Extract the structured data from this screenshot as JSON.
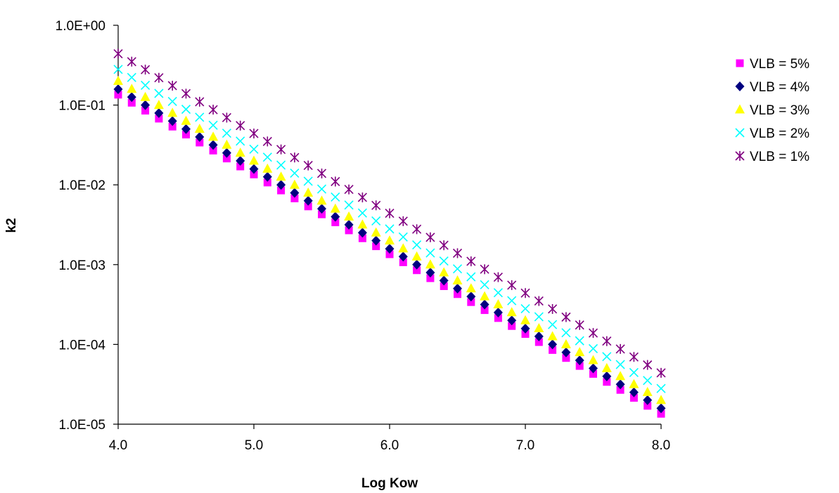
{
  "chart_data": {
    "type": "scatter",
    "title": "",
    "xlabel": "Log Kow",
    "ylabel": "k2",
    "x_scale": "linear",
    "y_scale": "log",
    "xlim": [
      4.0,
      8.0
    ],
    "ylim": [
      1e-05,
      1
    ],
    "x_ticks": [
      4.0,
      5.0,
      6.0,
      7.0,
      8.0
    ],
    "x_tick_labels": [
      "4.0",
      "5.0",
      "6.0",
      "7.0",
      "8.0"
    ],
    "y_ticks": [
      1,
      0.1,
      0.01,
      0.001,
      0.0001,
      1e-05
    ],
    "y_tick_labels": [
      "1.0E+00",
      "1.0E-01",
      "1.0E-02",
      "1.0E-03",
      "1.0E-04",
      "1.0E-05"
    ],
    "grid": false,
    "legend_position": "right",
    "x": [
      4.0,
      4.1,
      4.2,
      4.3,
      4.4,
      4.5,
      4.6,
      4.7,
      4.8,
      4.9,
      5.0,
      5.1,
      5.2,
      5.3,
      5.4,
      5.5,
      5.6,
      5.7,
      5.8,
      5.9,
      6.0,
      6.1,
      6.2,
      6.3,
      6.4,
      6.5,
      6.6,
      6.7,
      6.8,
      6.9,
      7.0,
      7.1,
      7.2,
      7.3,
      7.4,
      7.5,
      7.6,
      7.7,
      7.8,
      7.9,
      8.0
    ],
    "series": [
      {
        "name": "VLB = 5%",
        "marker": "square",
        "color": "#FF00FF",
        "values": [
          0.135,
          0.107,
          0.0851,
          0.0676,
          0.0537,
          0.0427,
          0.0339,
          0.0269,
          0.0214,
          0.017,
          0.0135,
          0.0107,
          0.00851,
          0.00676,
          0.00537,
          0.00427,
          0.00339,
          0.00269,
          0.00214,
          0.0017,
          0.00135,
          0.00107,
          0.000851,
          0.000676,
          0.000537,
          0.000427,
          0.000339,
          0.000269,
          0.000214,
          0.00017,
          0.000135,
          0.000107,
          8.51e-05,
          6.76e-05,
          5.37e-05,
          4.27e-05,
          3.39e-05,
          2.69e-05,
          2.14e-05,
          1.7e-05,
          1.35e-05
        ]
      },
      {
        "name": "VLB = 4%",
        "marker": "diamond",
        "color": "#000080",
        "values": [
          0.158,
          0.126,
          0.1,
          0.0794,
          0.0631,
          0.0501,
          0.0398,
          0.0316,
          0.0251,
          0.02,
          0.0158,
          0.0126,
          0.01,
          0.00794,
          0.00631,
          0.00501,
          0.00398,
          0.00316,
          0.00251,
          0.002,
          0.00158,
          0.00126,
          0.001,
          0.000794,
          0.000631,
          0.000501,
          0.000398,
          0.000316,
          0.000251,
          0.0002,
          0.000158,
          0.000126,
          0.0001,
          7.94e-05,
          6.31e-05,
          5.01e-05,
          3.98e-05,
          3.16e-05,
          2.51e-05,
          2e-05,
          1.58e-05
        ]
      },
      {
        "name": "VLB = 3%",
        "marker": "triangle",
        "color": "#FFFF00",
        "values": [
          0.2,
          0.159,
          0.126,
          0.1,
          0.0796,
          0.0632,
          0.0502,
          0.0399,
          0.0317,
          0.0252,
          0.02,
          0.0159,
          0.0126,
          0.01,
          0.00796,
          0.00632,
          0.00502,
          0.00399,
          0.00317,
          0.00252,
          0.002,
          0.00159,
          0.00126,
          0.001,
          0.000796,
          0.000632,
          0.000502,
          0.000399,
          0.000317,
          0.000252,
          0.0002,
          0.000159,
          0.000126,
          0.0001,
          7.96e-05,
          6.32e-05,
          5.02e-05,
          3.99e-05,
          3.17e-05,
          2.52e-05,
          2e-05
        ]
      },
      {
        "name": "VLB = 2%",
        "marker": "x",
        "color": "#00FFFF",
        "values": [
          0.28,
          0.222,
          0.177,
          0.14,
          0.111,
          0.0885,
          0.0703,
          0.0559,
          0.0444,
          0.0353,
          0.028,
          0.0222,
          0.0177,
          0.014,
          0.0111,
          0.00885,
          0.00703,
          0.00559,
          0.00444,
          0.00353,
          0.0028,
          0.00222,
          0.00177,
          0.0014,
          0.00111,
          0.000885,
          0.000703,
          0.000559,
          0.000444,
          0.000353,
          0.00028,
          0.000222,
          0.000177,
          0.00014,
          0.000111,
          8.85e-05,
          7.03e-05,
          5.59e-05,
          4.44e-05,
          3.53e-05,
          2.8e-05
        ]
      },
      {
        "name": "VLB = 1%",
        "marker": "asterisk",
        "color": "#800080",
        "values": [
          0.44,
          0.35,
          0.278,
          0.22,
          0.175,
          0.139,
          0.11,
          0.0876,
          0.0696,
          0.0553,
          0.044,
          0.035,
          0.0278,
          0.022,
          0.0175,
          0.0139,
          0.011,
          0.00876,
          0.00696,
          0.00553,
          0.0044,
          0.0035,
          0.00278,
          0.0022,
          0.00175,
          0.00139,
          0.0011,
          0.000876,
          0.000696,
          0.000553,
          0.00044,
          0.00035,
          0.000278,
          0.00022,
          0.000175,
          0.000139,
          0.00011,
          8.76e-05,
          6.96e-05,
          5.53e-05,
          4.4e-05
        ]
      }
    ]
  }
}
